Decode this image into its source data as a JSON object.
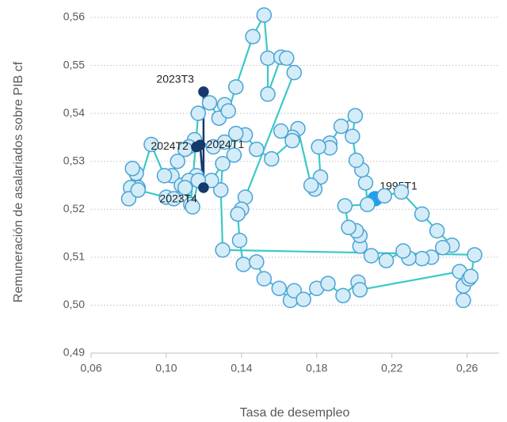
{
  "chart_data": {
    "type": "connected-scatter",
    "x_label": "Tasa de desempleo",
    "y_label": "Remuneración de asalariados sobre PIB cf",
    "xlim": [
      0.06,
      0.277
    ],
    "ylim": [
      0.49,
      0.56
    ],
    "xticks": [
      {
        "value": 0.06,
        "label": "0,06"
      },
      {
        "value": 0.1,
        "label": "0,10"
      },
      {
        "value": 0.14,
        "label": "0,14"
      },
      {
        "value": 0.18,
        "label": "0,18"
      },
      {
        "value": 0.22,
        "label": "0,22"
      },
      {
        "value": 0.26,
        "label": "0,26"
      }
    ],
    "yticks": [
      {
        "value": 0.49,
        "label": "0,49"
      },
      {
        "value": 0.5,
        "label": "0,50"
      },
      {
        "value": 0.51,
        "label": "0,51"
      },
      {
        "value": 0.52,
        "label": "0,52"
      },
      {
        "value": 0.53,
        "label": "0,53"
      },
      {
        "value": 0.54,
        "label": "0,54"
      },
      {
        "value": 0.55,
        "label": "0,55"
      },
      {
        "value": 0.56,
        "label": "0,56"
      }
    ],
    "grid": true,
    "series": [
      {
        "line_color": "#3cc8c8",
        "marker_fill": "#d4ecf7",
        "marker_stroke": "#4aa3d6",
        "label_marker_fill": "#1ea0f0",
        "x": [
          0.211,
          0.216,
          0.225,
          0.236,
          0.244,
          0.252,
          0.247,
          0.241,
          0.236,
          0.229,
          0.226,
          0.217,
          0.209,
          0.203,
          0.203,
          0.201,
          0.197,
          0.195,
          0.207,
          0.206,
          0.204,
          0.201,
          0.199,
          0.2005,
          0.193,
          0.187,
          0.187,
          0.181,
          0.182,
          0.179,
          0.177,
          0.17,
          0.167,
          0.161,
          0.167,
          0.156,
          0.148,
          0.142,
          0.137,
          0.136,
          0.131,
          0.125,
          0.115,
          0.112,
          0.11,
          0.106,
          0.103,
          0.099,
          0.092,
          0.085,
          0.084,
          0.082,
          0.081,
          0.08,
          0.085,
          0.1,
          0.104,
          0.108,
          0.113,
          0.117,
          0.123,
          0.128,
          0.131,
          0.133,
          0.137,
          0.146,
          0.152,
          0.154,
          0.154,
          0.161,
          0.164,
          0.168,
          0.142,
          0.14,
          0.138,
          0.139,
          0.141,
          0.148,
          0.152,
          0.16,
          0.166,
          0.168,
          0.173,
          0.18,
          0.186,
          0.194,
          0.202,
          0.203,
          0.256,
          0.258,
          0.258,
          0.261,
          0.262,
          0.264,
          0.13,
          0.129,
          0.13,
          0.124,
          0.116,
          0.112,
          0.11,
          0.114,
          0.117
        ],
        "y": [
          0.5222,
          0.5228,
          0.5236,
          0.519,
          0.5155,
          0.5125,
          0.512,
          0.51,
          0.5097,
          0.5098,
          0.5113,
          0.5093,
          0.5103,
          0.5123,
          0.5145,
          0.5155,
          0.5162,
          0.5207,
          0.521,
          0.5255,
          0.5282,
          0.5302,
          0.5352,
          0.5395,
          0.5373,
          0.5338,
          0.5328,
          0.533,
          0.5267,
          0.5242,
          0.525,
          0.5368,
          0.535,
          0.5363,
          0.5343,
          0.5305,
          0.5325,
          0.5355,
          0.5358,
          0.5313,
          0.534,
          0.533,
          0.5345,
          0.533,
          0.5325,
          0.53,
          0.527,
          0.527,
          0.5335,
          0.5245,
          0.5275,
          0.5285,
          0.5245,
          0.5222,
          0.524,
          0.5225,
          0.5222,
          0.525,
          0.521,
          0.54,
          0.5422,
          0.539,
          0.5418,
          0.5405,
          0.5455,
          0.556,
          0.5605,
          0.5515,
          0.544,
          0.5517,
          0.5515,
          0.5485,
          0.5225,
          0.52,
          0.519,
          0.5135,
          0.5085,
          0.509,
          0.5055,
          0.5035,
          0.501,
          0.503,
          0.5012,
          0.5035,
          0.5045,
          0.502,
          0.5048,
          0.5032,
          0.507,
          0.504,
          0.501,
          0.5055,
          0.506,
          0.5105,
          0.5115,
          0.524,
          0.5295,
          0.526,
          0.527,
          0.526,
          0.5245,
          0.5205,
          0.526
        ],
        "labels": [
          "1995T1",
          null,
          null,
          null,
          null,
          null,
          null,
          null,
          null,
          null,
          null,
          null,
          null,
          null,
          null,
          null,
          null,
          null,
          null,
          null,
          null,
          null,
          null,
          null,
          null,
          null,
          null,
          null,
          null,
          null,
          null,
          null,
          null,
          null,
          null,
          null,
          null,
          null,
          null,
          null,
          null,
          null,
          null,
          null,
          null,
          null,
          null,
          null,
          null,
          null,
          null,
          null,
          null,
          null,
          null,
          null,
          null,
          null,
          null,
          null,
          null,
          null,
          null,
          null,
          null,
          null,
          null,
          null,
          null,
          null,
          null,
          null,
          null,
          null,
          null,
          null,
          null,
          null,
          null,
          null,
          null,
          null,
          null,
          null,
          null,
          null,
          null,
          null,
          null,
          null,
          null,
          null,
          null,
          null,
          null,
          null,
          null,
          null,
          null,
          null,
          null,
          null,
          null
        ]
      },
      {
        "line_color": "#17386b",
        "marker_fill": "#17386b",
        "marker_stroke": "#17386b",
        "label_marker_fill": "#17386b",
        "x": [
          0.1198,
          0.1198,
          0.118,
          0.116
        ],
        "y": [
          0.5445,
          0.5245,
          0.5334,
          0.533
        ],
        "labels": [
          "2023T3",
          "2023T4",
          "2024T1",
          "2024T2"
        ]
      }
    ]
  }
}
